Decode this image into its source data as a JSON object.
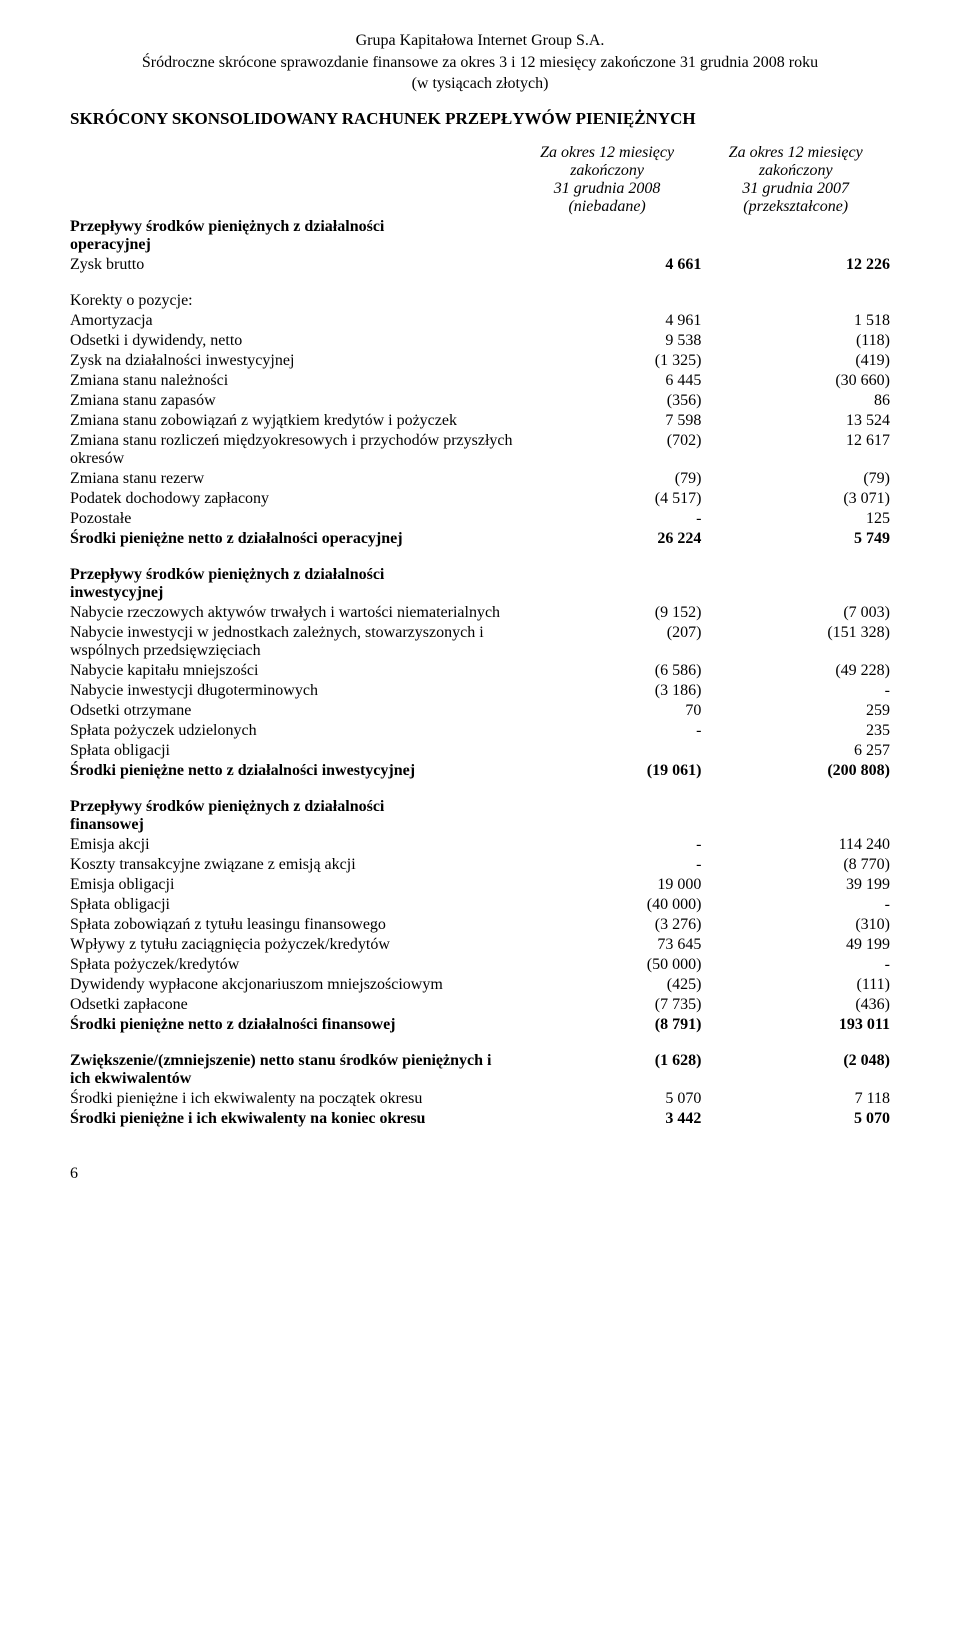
{
  "header": {
    "line1": "Grupa Kapitałowa Internet Group S.A.",
    "line2": "Śródroczne skrócone sprawozdanie finansowe za okres 3 i 12 miesięcy zakończone 31 grudnia 2008 roku",
    "line3": "(w tysiącach złotych)"
  },
  "title": "SKRÓCONY SKONSOLIDOWANY RACHUNEK PRZEPŁYWÓW PIENIĘŻNYCH",
  "columns": {
    "c1": {
      "l1": "Za okres 12 miesięcy",
      "l2": "zakończony",
      "l3": "31 grudnia 2008",
      "l4": "(niebadane)"
    },
    "c2": {
      "l1": "Za okres 12 miesięcy",
      "l2": "zakończony",
      "l3": "31 grudnia 2007",
      "l4": "(przekształcone)"
    }
  },
  "sections": {
    "op": {
      "heading1": "Przepływy środków pieniężnych z działalności",
      "heading2": "operacyjnej",
      "rows": {
        "r1": {
          "label": "Zysk brutto",
          "v1": "4 661",
          "v2": "12 226",
          "bold1": true,
          "bold2": true
        },
        "r2": {
          "label": "Korekty o pozycje:",
          "v1": "",
          "v2": ""
        },
        "r3": {
          "label": "Amortyzacja",
          "v1": "4 961",
          "v2": "1 518"
        },
        "r4": {
          "label": "Odsetki i dywidendy, netto",
          "v1": "9 538",
          "v2": "(118)"
        },
        "r5": {
          "label": "Zysk na działalności inwestycyjnej",
          "v1": "(1 325)",
          "v2": "(419)"
        },
        "r6": {
          "label": "Zmiana stanu należności",
          "v1": "6 445",
          "v2": "(30 660)"
        },
        "r7": {
          "label": "Zmiana stanu zapasów",
          "v1": "(356)",
          "v2": "86"
        },
        "r8": {
          "label": "Zmiana stanu zobowiązań z wyjątkiem kredytów i pożyczek",
          "v1": "7 598",
          "v2": "13 524"
        },
        "r9": {
          "label": "Zmiana stanu rozliczeń międzyokresowych i przychodów przyszłych okresów",
          "v1": "(702)",
          "v2": "12 617"
        },
        "r10": {
          "label": "Zmiana stanu rezerw",
          "v1": "(79)",
          "v2": "(79)"
        },
        "r11": {
          "label": "Podatek dochodowy zapłacony",
          "v1": "(4 517)",
          "v2": "(3 071)"
        },
        "r12": {
          "label": "Pozostałe",
          "v1": "-",
          "v2": "125"
        },
        "r13": {
          "label": "Środki pieniężne netto z działalności operacyjnej",
          "v1": "26 224",
          "v2": "5 749",
          "boldRow": true
        }
      }
    },
    "inv": {
      "heading1": "Przepływy środków pieniężnych z działalności",
      "heading2": "inwestycyjnej",
      "rows": {
        "r1": {
          "label": "Nabycie rzeczowych aktywów trwałych i wartości niematerialnych",
          "v1": "(9 152)",
          "v2": "(7 003)"
        },
        "r2": {
          "label": "Nabycie inwestycji w jednostkach zależnych, stowarzyszonych i wspólnych przedsięwzięciach",
          "v1": "(207)",
          "v2": "(151 328)"
        },
        "r3": {
          "label": "Nabycie kapitału mniejszości",
          "v1": "(6 586)",
          "v2": "(49 228)"
        },
        "r4": {
          "label": "Nabycie inwestycji długoterminowych",
          "v1": "(3 186)",
          "v2": "-"
        },
        "r5": {
          "label": "Odsetki otrzymane",
          "v1": "70",
          "v2": "259"
        },
        "r6": {
          "label": "Spłata pożyczek udzielonych",
          "v1": "-",
          "v2": "235"
        },
        "r7": {
          "label": "Spłata obligacji",
          "v1": "",
          "v2": "6 257"
        },
        "r8": {
          "label": "Środki pieniężne netto z działalności inwestycyjnej",
          "v1": "(19 061)",
          "v2": "(200 808)",
          "boldRow": true
        }
      }
    },
    "fin": {
      "heading1": "Przepływy środków pieniężnych z działalności",
      "heading2": "finansowej",
      "rows": {
        "r1": {
          "label": "Emisja akcji",
          "v1": "-",
          "v2": "114 240"
        },
        "r2": {
          "label": "Koszty transakcyjne związane z emisją akcji",
          "v1": "-",
          "v2": "(8 770)"
        },
        "r3": {
          "label": "Emisja obligacji",
          "v1": "19 000",
          "v2": "39 199"
        },
        "r4": {
          "label": "Spłata obligacji",
          "v1": "(40 000)",
          "v2": "-"
        },
        "r5": {
          "label": "Spłata zobowiązań z tytułu leasingu finansowego",
          "v1": "(3 276)",
          "v2": "(310)"
        },
        "r6": {
          "label": "Wpływy z tytułu zaciągnięcia pożyczek/kredytów",
          "v1": "73 645",
          "v2": "49 199"
        },
        "r7": {
          "label": "Spłata pożyczek/kredytów",
          "v1": "(50 000)",
          "v2": "-"
        },
        "r8": {
          "label": "Dywidendy wypłacone akcjonariuszom mniejszościowym",
          "v1": "(425)",
          "v2": "(111)"
        },
        "r9": {
          "label": "Odsetki zapłacone",
          "v1": "(7 735)",
          "v2": "(436)"
        },
        "r10": {
          "label": "Środki pieniężne netto z działalności finansowej",
          "v1": "(8 791)",
          "v2": "193 011",
          "boldRow": true
        }
      }
    },
    "sum": {
      "rows": {
        "r1": {
          "label": "Zwiększenie/(zmniejszenie) netto stanu środków pieniężnych i ich ekwiwalentów",
          "v1": "(1 628)",
          "v2": "(2 048)",
          "boldRow": true
        },
        "r2": {
          "label": "Środki pieniężne i ich ekwiwalenty na początek okresu",
          "v1": "5 070",
          "v2": "7 118"
        },
        "r3": {
          "label": "Środki pieniężne i ich ekwiwalenty na koniec okresu",
          "v1": "3 442",
          "v2": "5 070",
          "boldRow": true
        }
      }
    }
  },
  "pageNumber": "6"
}
